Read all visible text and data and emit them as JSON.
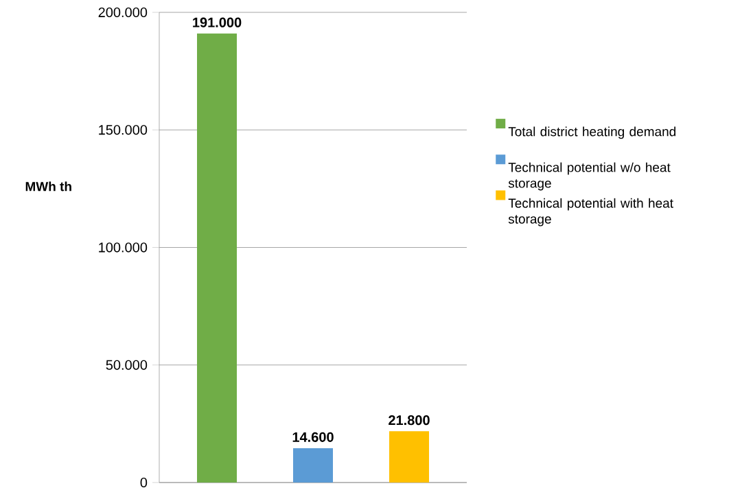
{
  "chart_data": {
    "type": "bar",
    "ylabel": "MWh th",
    "categories": [
      null
    ],
    "series": [
      {
        "name": "Total district heating demand",
        "color": "#70ad47",
        "values": [
          191000
        ],
        "value_labels": [
          "191.000"
        ]
      },
      {
        "name": "Technical potential w/o heat storage",
        "color": "#5b9bd5",
        "values": [
          14600
        ],
        "value_labels": [
          "14.600"
        ]
      },
      {
        "name": "Technical potential with heat storage",
        "color": "#ffc000",
        "values": [
          21800
        ],
        "value_labels": [
          "21.800"
        ]
      }
    ],
    "ylim": [
      0,
      200000
    ],
    "yticks": [
      0,
      {
        "value": 50000,
        "label": "50.000"
      },
      {
        "value": 100000,
        "label": "100.000"
      },
      {
        "value": 150000,
        "label": "150.000"
      },
      {
        "value": 200000,
        "label": "200.000"
      }
    ],
    "grid": "y",
    "legend": "right",
    "tick_labels": "y"
  }
}
